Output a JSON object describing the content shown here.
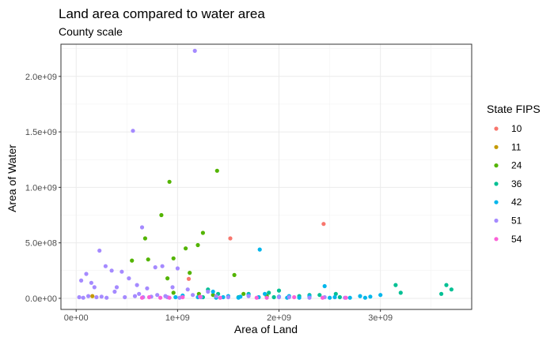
{
  "chart_data": {
    "type": "scatter",
    "title": "Land area compared to water area",
    "subtitle": "County scale",
    "xlabel": "Area of Land",
    "ylabel": "Area of Water",
    "xlim": [
      -150000000,
      3900000000
    ],
    "ylim": [
      -100000000,
      2290000000
    ],
    "x_ticks": [
      {
        "value": 0,
        "label": "0e+00"
      },
      {
        "value": 1000000000,
        "label": "1e+09"
      },
      {
        "value": 2000000000,
        "label": "2e+09"
      },
      {
        "value": 3000000000,
        "label": "3e+09"
      }
    ],
    "y_ticks": [
      {
        "value": 0,
        "label": "0.0e+00"
      },
      {
        "value": 500000000,
        "label": "5.0e+08"
      },
      {
        "value": 1000000000,
        "label": "1.0e+09"
      },
      {
        "value": 1500000000,
        "label": "1.5e+09"
      },
      {
        "value": 2000000000,
        "label": "2.0e+09"
      }
    ],
    "grid": true,
    "legend": {
      "title": "State FIPS",
      "position": "right"
    },
    "series": [
      {
        "name": "10",
        "color": "#F8766D",
        "points": [
          [
            1520000000,
            540000000
          ],
          [
            2440000000,
            670000000
          ],
          [
            1110000000,
            175000000
          ]
        ]
      },
      {
        "name": "11",
        "color": "#C49A00",
        "points": [
          [
            160000000,
            20000000
          ]
        ]
      },
      {
        "name": "24",
        "color": "#53B400",
        "points": [
          [
            550000000,
            340000000
          ],
          [
            710000000,
            350000000
          ],
          [
            920000000,
            1050000000
          ],
          [
            1390000000,
            1150000000
          ],
          [
            840000000,
            750000000
          ],
          [
            1200000000,
            480000000
          ],
          [
            1250000000,
            590000000
          ],
          [
            960000000,
            360000000
          ],
          [
            1080000000,
            450000000
          ],
          [
            680000000,
            540000000
          ],
          [
            900000000,
            180000000
          ],
          [
            1120000000,
            230000000
          ],
          [
            1560000000,
            210000000
          ],
          [
            960000000,
            50000000
          ],
          [
            1350000000,
            30000000
          ],
          [
            1210000000,
            40000000
          ],
          [
            1880000000,
            20000000
          ],
          [
            1650000000,
            40000000
          ]
        ]
      },
      {
        "name": "36",
        "color": "#00C094",
        "points": [
          [
            1600000000,
            10000000
          ],
          [
            1700000000,
            40000000
          ],
          [
            1900000000,
            50000000
          ],
          [
            2000000000,
            70000000
          ],
          [
            2200000000,
            20000000
          ],
          [
            2400000000,
            30000000
          ],
          [
            2600000000,
            10000000
          ],
          [
            3150000000,
            120000000
          ],
          [
            3200000000,
            50000000
          ],
          [
            3600000000,
            40000000
          ],
          [
            3650000000,
            120000000
          ],
          [
            3700000000,
            80000000
          ],
          [
            2560000000,
            40000000
          ],
          [
            2300000000,
            30000000
          ],
          [
            1300000000,
            80000000
          ],
          [
            1400000000,
            40000000
          ],
          [
            1250000000,
            10000000
          ],
          [
            1950000000,
            10000000
          ]
        ]
      },
      {
        "name": "42",
        "color": "#00B6EB",
        "points": [
          [
            1810000000,
            440000000
          ],
          [
            1200000000,
            10000000
          ],
          [
            1350000000,
            60000000
          ],
          [
            1500000000,
            20000000
          ],
          [
            1600000000,
            5000000
          ],
          [
            1700000000,
            30000000
          ],
          [
            1800000000,
            10000000
          ],
          [
            2000000000,
            15000000
          ],
          [
            2100000000,
            20000000
          ],
          [
            2300000000,
            20000000
          ],
          [
            2450000000,
            110000000
          ],
          [
            2550000000,
            10000000
          ],
          [
            2700000000,
            5000000
          ],
          [
            2850000000,
            5000000
          ],
          [
            2900000000,
            15000000
          ],
          [
            3000000000,
            30000000
          ],
          [
            2080000000,
            5000000
          ],
          [
            1050000000,
            25000000
          ],
          [
            980000000,
            10000000
          ],
          [
            1450000000,
            10000000
          ],
          [
            2200000000,
            5000000
          ],
          [
            2500000000,
            5000000
          ],
          [
            2800000000,
            20000000
          ],
          [
            1860000000,
            40000000
          ],
          [
            1620000000,
            15000000
          ],
          [
            1380000000,
            5000000
          ]
        ]
      },
      {
        "name": "51",
        "color": "#A58AFF",
        "points": [
          [
            1170000000,
            2230000000
          ],
          [
            560000000,
            1510000000
          ],
          [
            650000000,
            640000000
          ],
          [
            230000000,
            430000000
          ],
          [
            450000000,
            240000000
          ],
          [
            350000000,
            250000000
          ],
          [
            100000000,
            220000000
          ],
          [
            50000000,
            160000000
          ],
          [
            150000000,
            140000000
          ],
          [
            290000000,
            290000000
          ],
          [
            850000000,
            290000000
          ],
          [
            1000000000,
            270000000
          ],
          [
            780000000,
            280000000
          ],
          [
            520000000,
            180000000
          ],
          [
            600000000,
            120000000
          ],
          [
            400000000,
            100000000
          ],
          [
            950000000,
            100000000
          ],
          [
            700000000,
            90000000
          ],
          [
            1100000000,
            80000000
          ],
          [
            1300000000,
            60000000
          ],
          [
            1700000000,
            20000000
          ],
          [
            2000000000,
            10000000
          ],
          [
            2300000000,
            5000000
          ],
          [
            2650000000,
            5000000
          ],
          [
            800000000,
            30000000
          ],
          [
            900000000,
            10000000
          ],
          [
            30000000,
            10000000
          ],
          [
            70000000,
            5000000
          ],
          [
            120000000,
            20000000
          ],
          [
            200000000,
            10000000
          ],
          [
            250000000,
            15000000
          ],
          [
            300000000,
            5000000
          ],
          [
            480000000,
            10000000
          ],
          [
            580000000,
            20000000
          ],
          [
            620000000,
            40000000
          ],
          [
            660000000,
            10000000
          ],
          [
            740000000,
            15000000
          ],
          [
            880000000,
            20000000
          ],
          [
            1020000000,
            5000000
          ],
          [
            1150000000,
            30000000
          ],
          [
            1230000000,
            10000000
          ],
          [
            1380000000,
            20000000
          ],
          [
            1500000000,
            10000000
          ],
          [
            2100000000,
            10000000
          ],
          [
            2450000000,
            10000000
          ],
          [
            180000000,
            100000000
          ],
          [
            380000000,
            60000000
          ]
        ]
      },
      {
        "name": "54",
        "color": "#FB61D7",
        "points": [
          [
            650000000,
            5000000
          ],
          [
            720000000,
            10000000
          ],
          [
            830000000,
            5000000
          ],
          [
            920000000,
            5000000
          ],
          [
            1050000000,
            10000000
          ],
          [
            1420000000,
            5000000
          ],
          [
            1780000000,
            5000000
          ],
          [
            2150000000,
            10000000
          ],
          [
            2430000000,
            5000000
          ],
          [
            2660000000,
            5000000
          ],
          [
            1220000000,
            15000000
          ],
          [
            1880000000,
            5000000
          ]
        ]
      }
    ]
  }
}
